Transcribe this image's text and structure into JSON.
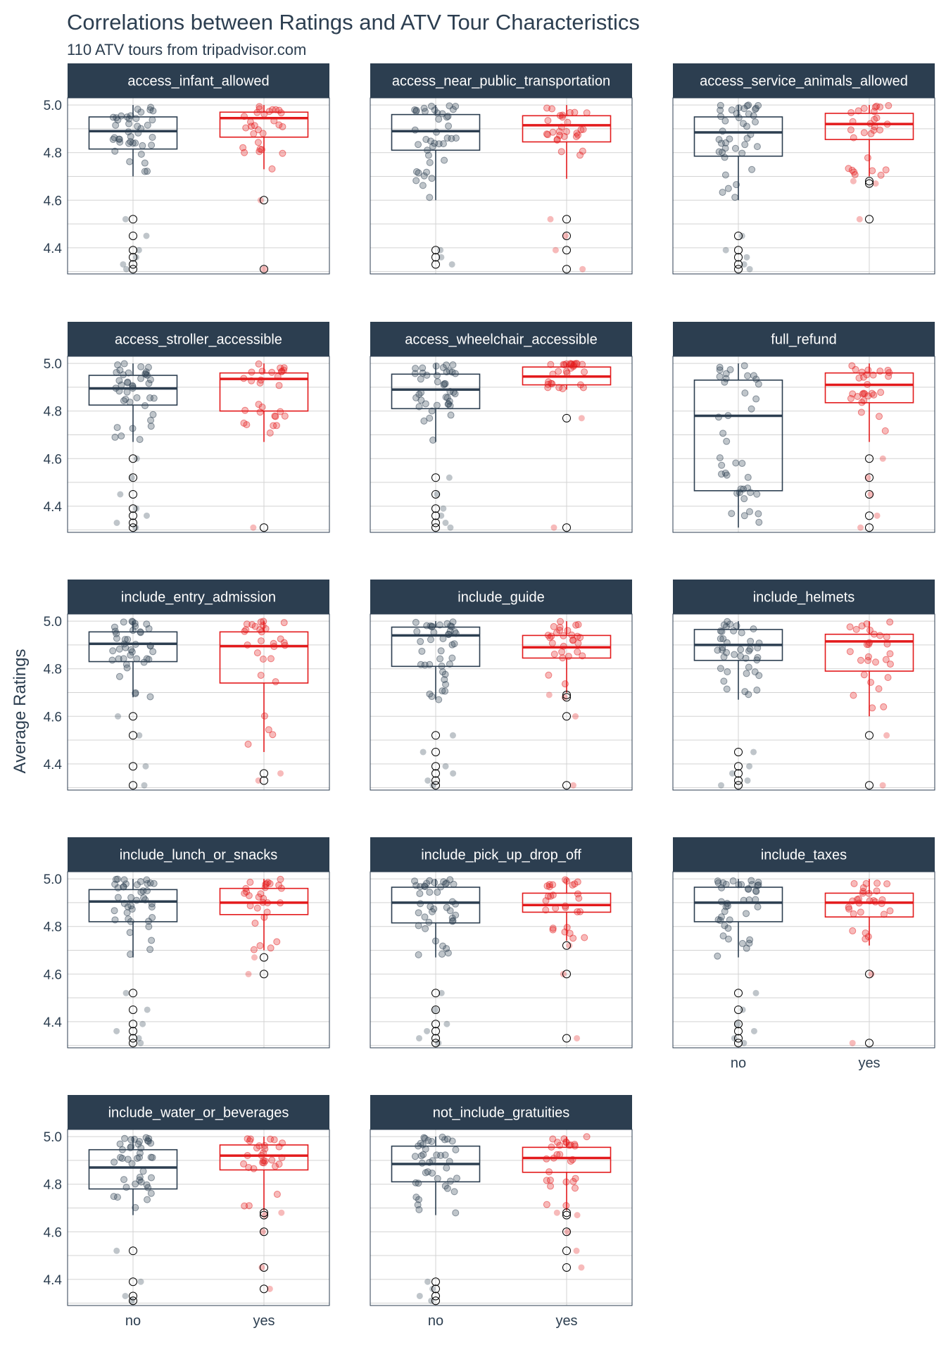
{
  "chart_data": {
    "type": "boxplot",
    "title": "Correlations between Ratings and ATV Tour Characteristics",
    "subtitle": "110 ATV tours from tripadvisor.com",
    "ylabel": "Average Ratings",
    "xlabel": "",
    "ylim": [
      4.29,
      5.03
    ],
    "yticks": [
      4.4,
      4.6,
      4.8,
      5.0
    ],
    "ytick_labels": [
      "4.4",
      "4.6",
      "4.8",
      "5.0"
    ],
    "categories": [
      "no",
      "yes"
    ],
    "colors": {
      "no": "#2c3e50",
      "yes": "#e31a1c",
      "strip": "#2c3e50",
      "strip_text": "#ffffff",
      "grid": "#d3d3d3"
    },
    "panels": [
      {
        "name": "access_infant_allowed",
        "show_x_labels": false,
        "no": {
          "q1": 4.815,
          "median": 4.89,
          "q3": 4.95,
          "whisker_low": 4.7,
          "whisker_high": 5.0,
          "outliers": [
            4.52,
            4.45,
            4.39,
            4.36,
            4.33,
            4.31
          ]
        },
        "yes": {
          "q1": 4.865,
          "median": 4.945,
          "q3": 4.97,
          "whisker_low": 4.73,
          "whisker_high": 5.0,
          "outliers": [
            4.6,
            4.31
          ]
        }
      },
      {
        "name": "access_near_public_transportation",
        "show_x_labels": false,
        "no": {
          "q1": 4.81,
          "median": 4.89,
          "q3": 4.96,
          "whisker_low": 4.6,
          "whisker_high": 5.0,
          "outliers": [
            4.39,
            4.36,
            4.33
          ]
        },
        "yes": {
          "q1": 4.845,
          "median": 4.915,
          "q3": 4.955,
          "whisker_low": 4.69,
          "whisker_high": 5.0,
          "outliers": [
            4.52,
            4.45,
            4.39,
            4.31
          ]
        }
      },
      {
        "name": "access_service_animals_allowed",
        "show_x_labels": false,
        "no": {
          "q1": 4.785,
          "median": 4.885,
          "q3": 4.95,
          "whisker_low": 4.6,
          "whisker_high": 5.0,
          "outliers": [
            4.45,
            4.39,
            4.36,
            4.33,
            4.31
          ]
        },
        "yes": {
          "q1": 4.855,
          "median": 4.92,
          "q3": 4.965,
          "whisker_low": 4.7,
          "whisker_high": 5.0,
          "outliers": [
            4.68,
            4.67,
            4.52
          ]
        }
      },
      {
        "name": "access_stroller_accessible",
        "show_x_labels": false,
        "no": {
          "q1": 4.825,
          "median": 4.895,
          "q3": 4.95,
          "whisker_low": 4.67,
          "whisker_high": 5.0,
          "outliers": [
            4.6,
            4.52,
            4.45,
            4.39,
            4.36,
            4.33,
            4.31
          ]
        },
        "yes": {
          "q1": 4.8,
          "median": 4.935,
          "q3": 4.96,
          "whisker_low": 4.67,
          "whisker_high": 5.0,
          "outliers": [
            4.31
          ]
        }
      },
      {
        "name": "access_wheelchair_accessible",
        "show_x_labels": false,
        "no": {
          "q1": 4.81,
          "median": 4.89,
          "q3": 4.955,
          "whisker_low": 4.67,
          "whisker_high": 5.0,
          "outliers": [
            4.52,
            4.45,
            4.39,
            4.36,
            4.33,
            4.31
          ]
        },
        "yes": {
          "q1": 4.91,
          "median": 4.945,
          "q3": 4.985,
          "whisker_low": 4.89,
          "whisker_high": 5.0,
          "outliers": [
            4.77,
            4.31
          ]
        }
      },
      {
        "name": "full_refund",
        "show_x_labels": false,
        "no": {
          "q1": 4.465,
          "median": 4.78,
          "q3": 4.93,
          "whisker_low": 4.31,
          "whisker_high": 5.0,
          "outliers": []
        },
        "yes": {
          "q1": 4.835,
          "median": 4.91,
          "q3": 4.96,
          "whisker_low": 4.67,
          "whisker_high": 5.0,
          "outliers": [
            4.6,
            4.52,
            4.45,
            4.36,
            4.31
          ]
        }
      },
      {
        "name": "include_entry_admission",
        "show_x_labels": false,
        "no": {
          "q1": 4.83,
          "median": 4.905,
          "q3": 4.955,
          "whisker_low": 4.68,
          "whisker_high": 5.0,
          "outliers": [
            4.6,
            4.52,
            4.39,
            4.31
          ]
        },
        "yes": {
          "q1": 4.74,
          "median": 4.895,
          "q3": 4.955,
          "whisker_low": 4.45,
          "whisker_high": 5.0,
          "outliers": [
            4.36,
            4.33
          ]
        }
      },
      {
        "name": "include_guide",
        "show_x_labels": false,
        "no": {
          "q1": 4.81,
          "median": 4.94,
          "q3": 4.975,
          "whisker_low": 4.67,
          "whisker_high": 5.0,
          "outliers": [
            4.52,
            4.45,
            4.39,
            4.36,
            4.33,
            4.31
          ]
        },
        "yes": {
          "q1": 4.845,
          "median": 4.89,
          "q3": 4.94,
          "whisker_low": 4.7,
          "whisker_high": 5.0,
          "outliers": [
            4.69,
            4.68,
            4.6,
            4.31
          ]
        }
      },
      {
        "name": "include_helmets",
        "show_x_labels": false,
        "no": {
          "q1": 4.835,
          "median": 4.9,
          "q3": 4.965,
          "whisker_low": 4.67,
          "whisker_high": 5.0,
          "outliers": [
            4.45,
            4.39,
            4.36,
            4.33,
            4.31
          ]
        },
        "yes": {
          "q1": 4.79,
          "median": 4.915,
          "q3": 4.945,
          "whisker_low": 4.6,
          "whisker_high": 5.0,
          "outliers": [
            4.52,
            4.31
          ]
        }
      },
      {
        "name": "include_lunch_or_snacks",
        "show_x_labels": false,
        "no": {
          "q1": 4.82,
          "median": 4.905,
          "q3": 4.955,
          "whisker_low": 4.67,
          "whisker_high": 5.0,
          "outliers": [
            4.52,
            4.45,
            4.39,
            4.36,
            4.33,
            4.31
          ]
        },
        "yes": {
          "q1": 4.85,
          "median": 4.9,
          "q3": 4.96,
          "whisker_low": 4.7,
          "whisker_high": 5.0,
          "outliers": [
            4.67,
            4.6
          ]
        }
      },
      {
        "name": "include_pick_up_drop_off",
        "show_x_labels": false,
        "no": {
          "q1": 4.815,
          "median": 4.9,
          "q3": 4.965,
          "whisker_low": 4.67,
          "whisker_high": 5.0,
          "outliers": [
            4.52,
            4.45,
            4.39,
            4.36,
            4.33,
            4.31
          ]
        },
        "yes": {
          "q1": 4.86,
          "median": 4.89,
          "q3": 4.94,
          "whisker_low": 4.74,
          "whisker_high": 5.0,
          "outliers": [
            4.72,
            4.6,
            4.33
          ]
        }
      },
      {
        "name": "include_taxes",
        "show_x_labels": true,
        "no": {
          "q1": 4.82,
          "median": 4.9,
          "q3": 4.965,
          "whisker_low": 4.67,
          "whisker_high": 5.0,
          "outliers": [
            4.52,
            4.45,
            4.39,
            4.36,
            4.33,
            4.31
          ]
        },
        "yes": {
          "q1": 4.84,
          "median": 4.9,
          "q3": 4.94,
          "whisker_low": 4.72,
          "whisker_high": 5.0,
          "outliers": [
            4.6,
            4.31
          ]
        }
      },
      {
        "name": "include_water_or_beverages",
        "show_x_labels": true,
        "no": {
          "q1": 4.78,
          "median": 4.87,
          "q3": 4.945,
          "whisker_low": 4.67,
          "whisker_high": 5.0,
          "outliers": [
            4.52,
            4.39,
            4.33,
            4.31
          ]
        },
        "yes": {
          "q1": 4.86,
          "median": 4.92,
          "q3": 4.965,
          "whisker_low": 4.69,
          "whisker_high": 5.0,
          "outliers": [
            4.68,
            4.67,
            4.6,
            4.45,
            4.36
          ]
        }
      },
      {
        "name": "not_include_gratuities",
        "show_x_labels": true,
        "no": {
          "q1": 4.81,
          "median": 4.885,
          "q3": 4.96,
          "whisker_low": 4.67,
          "whisker_high": 5.0,
          "outliers": [
            4.39,
            4.36,
            4.33,
            4.31
          ]
        },
        "yes": {
          "q1": 4.85,
          "median": 4.91,
          "q3": 4.955,
          "whisker_low": 4.69,
          "whisker_high": 5.0,
          "outliers": [
            4.68,
            4.67,
            4.6,
            4.52,
            4.45
          ]
        }
      }
    ]
  }
}
